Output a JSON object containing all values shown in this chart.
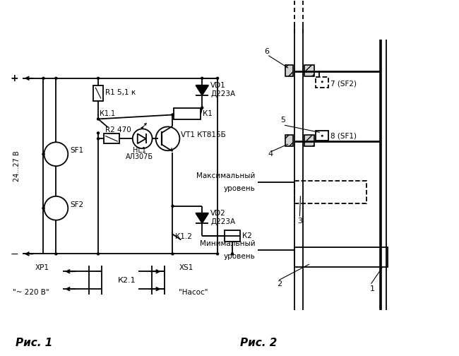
{
  "bg_color": "#ffffff",
  "fig1_label": "Рис. 1",
  "fig2_label": "Рис. 2",
  "voltage_label": "24...27 В",
  "R1": "R1 5,1 к",
  "R2": "R2 470",
  "VD1_line1": "VD1",
  "VD1_line2": "Д223А",
  "VD2_line1": "VD2",
  "VD2_line2": "Д223А",
  "VT1": "VT1 КТ815Б",
  "HL1_line1": "HL1",
  "HL1_line2": "АЛ307Б",
  "SF1": "SF1",
  "SF2": "SF2",
  "K1": "К1",
  "K1_1": "К1.1",
  "K1_2": "К1.2",
  "K2": "К2",
  "K2_1": "К2.1",
  "XP1_line1": "ХР1",
  "XP1_line2": "\"~ 220 В\"",
  "XS1_line1": "ХS1",
  "XS1_line2": "\"Насос\"",
  "label_6": "6",
  "label_7": "7 (SF2)",
  "label_5": "5",
  "label_8": "8 (SF1)",
  "label_4": "4",
  "label_3": "3",
  "label_2": "2",
  "label_1": "1",
  "max_level_1": "Максимальный",
  "max_level_2": "уровень",
  "min_level_1": "Минимальный",
  "min_level_2": "уровень"
}
